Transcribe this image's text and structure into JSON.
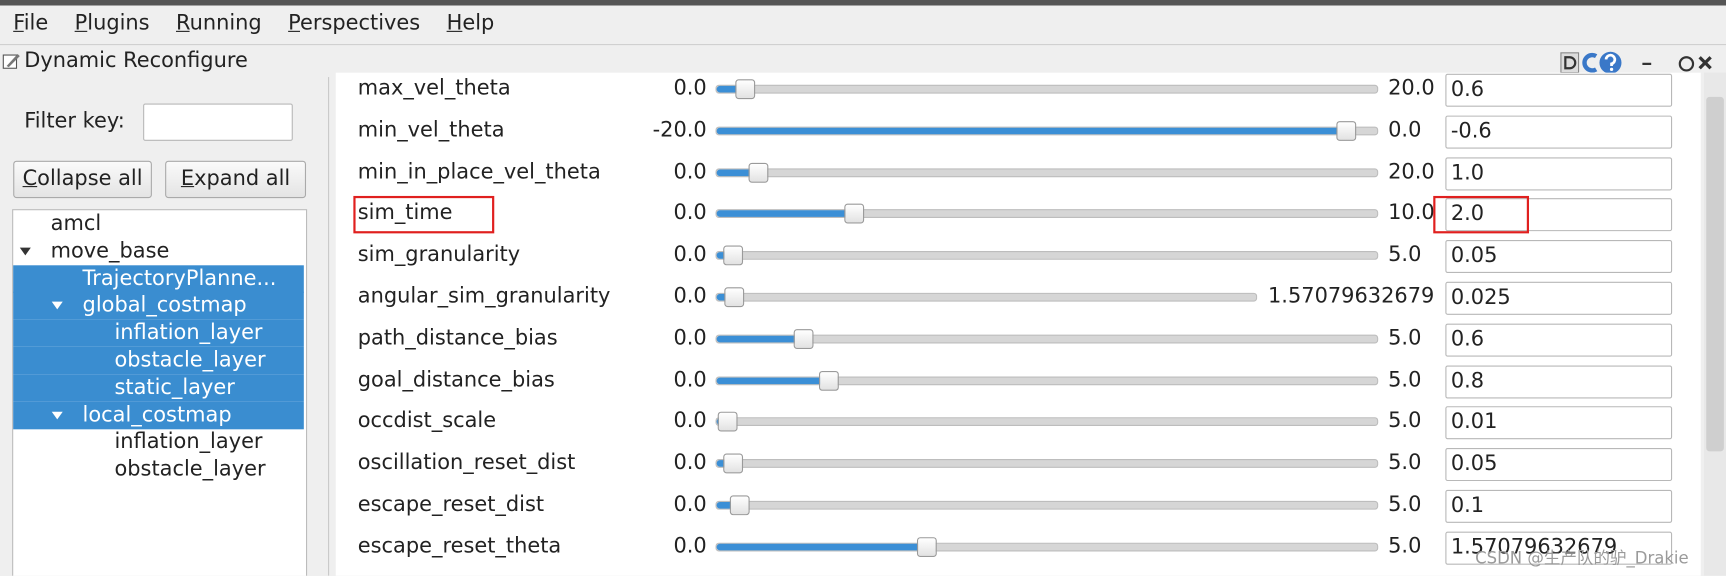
{
  "menu": [
    "File",
    "Plugins",
    "Running",
    "Perspectives",
    "Help"
  ],
  "panel_title": "Dynamic Reconfigure",
  "filter_label": "Filter key:",
  "buttons": [
    "Collapse all",
    "Expand all"
  ],
  "tree": [
    {
      "label": "amcl",
      "level": 1,
      "expanded": null,
      "selected": false
    },
    {
      "label": "move_base",
      "level": 1,
      "expanded": true,
      "selected": false
    },
    {
      "label": "TrajectoryPlanne...",
      "level": 2,
      "expanded": null,
      "selected": true
    },
    {
      "label": "global_costmap",
      "level": 2,
      "expanded": true,
      "selected": true
    },
    {
      "label": "inflation_layer",
      "level": 3,
      "expanded": null,
      "selected": true
    },
    {
      "label": "obstacle_layer",
      "level": 3,
      "expanded": null,
      "selected": true
    },
    {
      "label": "static_layer",
      "level": 3,
      "expanded": null,
      "selected": true
    },
    {
      "label": "local_costmap",
      "level": 2,
      "expanded": true,
      "selected": true
    },
    {
      "label": "inflation_layer",
      "level": 3,
      "expanded": null,
      "selected": false
    },
    {
      "label": "obstacle_layer",
      "level": 3,
      "expanded": null,
      "selected": false
    }
  ],
  "params": [
    {
      "name": "max_vel_theta",
      "min": "0.0",
      "max": "20.0",
      "value": "0.6",
      "highlighted": false
    },
    {
      "name": "min_vel_theta",
      "min": "-20.0",
      "max": "0.0",
      "value": "-0.6",
      "highlighted": false
    },
    {
      "name": "min_in_place_vel_theta",
      "min": "0.0",
      "max": "20.0",
      "value": "1.0",
      "highlighted": false
    },
    {
      "name": "sim_time",
      "min": "0.0",
      "max": "10.0",
      "value": "2.0",
      "highlighted": true
    },
    {
      "name": "sim_granularity",
      "min": "0.0",
      "max": "5.0",
      "value": "0.05",
      "highlighted": false
    },
    {
      "name": "angular_sim_granularity",
      "min": "0.0",
      "max": "1.57079632679",
      "value": "0.025",
      "highlighted": false
    },
    {
      "name": "path_distance_bias",
      "min": "0.0",
      "max": "5.0",
      "value": "0.6",
      "highlighted": false
    },
    {
      "name": "goal_distance_bias",
      "min": "0.0",
      "max": "5.0",
      "value": "0.8",
      "highlighted": false
    },
    {
      "name": "occdist_scale",
      "min": "0.0",
      "max": "5.0",
      "value": "0.01",
      "highlighted": false
    },
    {
      "name": "oscillation_reset_dist",
      "min": "0.0",
      "max": "5.0",
      "value": "0.05",
      "highlighted": false
    },
    {
      "name": "escape_reset_dist",
      "min": "0.0",
      "max": "5.0",
      "value": "0.1",
      "highlighted": false
    },
    {
      "name": "escape_reset_theta",
      "min": "0.0",
      "max": "5.0",
      "value": "1.57079632679",
      "highlighted": false
    }
  ],
  "watermark": "CSDN @生产队的驴_Drakie"
}
